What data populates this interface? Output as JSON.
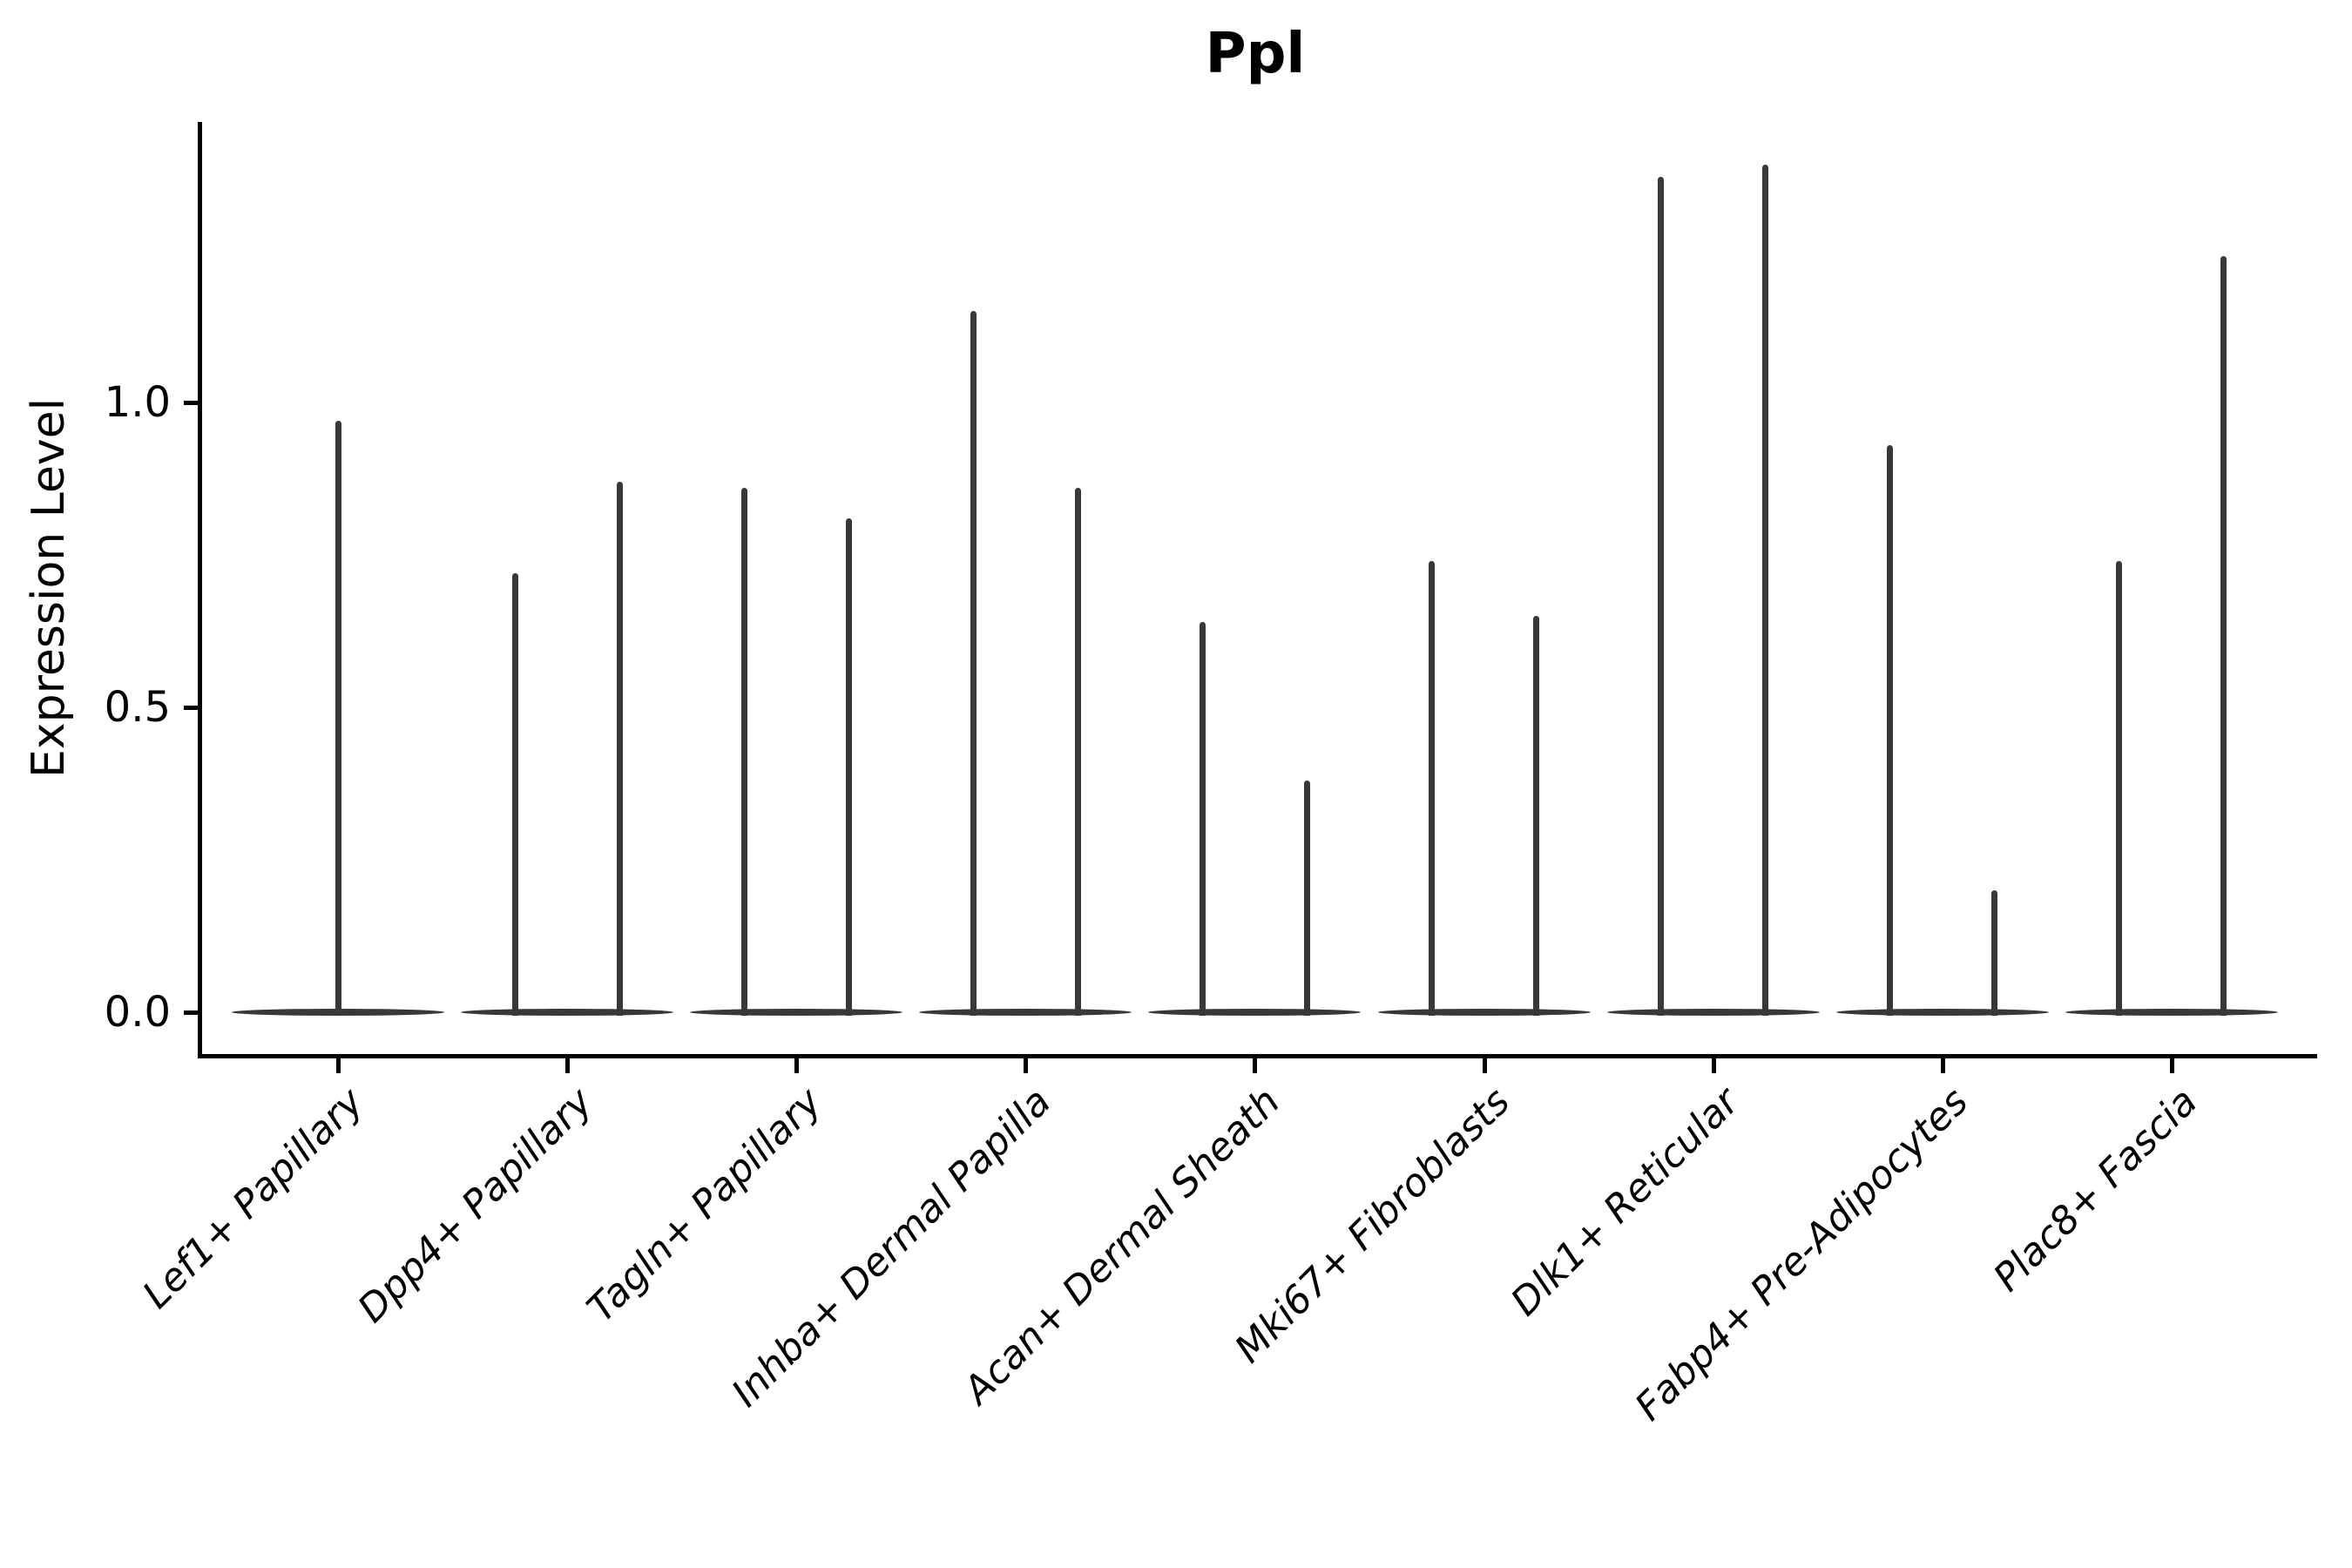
{
  "chart_data": {
    "type": "violin",
    "title": "Ppl",
    "xlabel": "",
    "ylabel": "Expression Level",
    "ytick_values": [
      0.0,
      0.5,
      1.0
    ],
    "ytick_labels": [
      "0.0",
      "0.5",
      "1.0"
    ],
    "ylim": [
      -0.07,
      1.46
    ],
    "grid": false,
    "legend": "none",
    "x_tick_label_rotation_deg": 45,
    "x_tick_label_style": "italic",
    "categories": [
      "Lef1+ Papillary",
      "Dpp4+ Papillary",
      "Tagln+ Papillary",
      "Inhba+ Dermal Papilla",
      "Acan+ Dermal Sheath",
      "Mki67+ Fibroblasts",
      "Dlk1+ Reticular",
      "Fabp4+ Pre-Adipocytes",
      "Plac8+ Fascia"
    ],
    "violins": [
      {
        "category": "Lef1+ Papillary",
        "baseline_value": 0.0,
        "maxima": [
          0.97
        ]
      },
      {
        "category": "Dpp4+ Papillary",
        "baseline_value": 0.0,
        "maxima": [
          0.72,
          0.87
        ]
      },
      {
        "category": "Tagln+ Papillary",
        "baseline_value": 0.0,
        "maxima": [
          0.86,
          0.81
        ]
      },
      {
        "category": "Inhba+ Dermal Papilla",
        "baseline_value": 0.0,
        "maxima": [
          1.15,
          0.86
        ]
      },
      {
        "category": "Acan+ Dermal Sheath",
        "baseline_value": 0.0,
        "maxima": [
          0.64,
          0.38
        ]
      },
      {
        "category": "Mki67+ Fibroblasts",
        "baseline_value": 0.0,
        "maxima": [
          0.74,
          0.65
        ]
      },
      {
        "category": "Dlk1+ Reticular",
        "baseline_value": 0.0,
        "maxima": [
          1.37,
          1.39
        ]
      },
      {
        "category": "Fabp4+ Pre-Adipocytes",
        "baseline_value": 0.0,
        "maxima": [
          0.93,
          0.2
        ]
      },
      {
        "category": "Plac8+ Fascia",
        "baseline_value": 0.0,
        "maxima": [
          0.74,
          1.24
        ]
      }
    ],
    "colors": {
      "violin": "#383838",
      "spine": "#000000",
      "text": "#000000",
      "background": "#ffffff"
    }
  }
}
